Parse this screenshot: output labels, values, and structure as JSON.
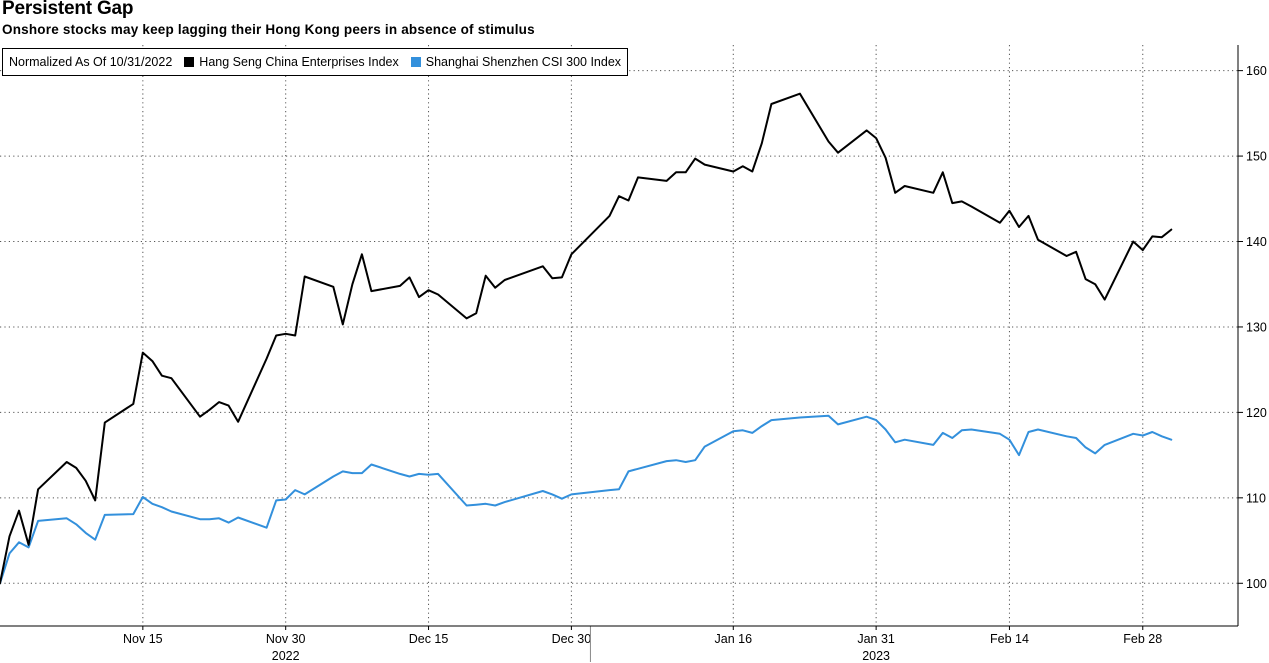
{
  "header": {
    "title": "Persistent Gap",
    "subtitle": "Onshore stocks may keep lagging their Hong Kong peers in absence of stimulus"
  },
  "legend": {
    "note": "Normalized As Of 10/31/2022"
  },
  "chart_data": {
    "type": "line",
    "ylim": [
      95,
      163
    ],
    "y_ticks": [
      100,
      110,
      120,
      130,
      140,
      150,
      160
    ],
    "x_range": [
      "2022-10-31",
      "2023-03-10"
    ],
    "x_ticks": [
      {
        "date": "2022-11-15",
        "label": "Nov 15"
      },
      {
        "date": "2022-11-30",
        "label": "Nov 30"
      },
      {
        "date": "2022-12-15",
        "label": "Dec 15"
      },
      {
        "date": "2022-12-30",
        "label": "Dec 30"
      },
      {
        "date": "2023-01-16",
        "label": "Jan 16"
      },
      {
        "date": "2023-01-31",
        "label": "Jan 31"
      },
      {
        "date": "2023-02-14",
        "label": "Feb 14"
      },
      {
        "date": "2023-02-28",
        "label": "Feb 28"
      }
    ],
    "year_labels": [
      {
        "date": "2022-11-30",
        "label": "2022"
      },
      {
        "date": "2023-01-31",
        "label": "2023"
      }
    ],
    "year_divider": "2023-01-01",
    "grid": "dotted",
    "legend_position": "top-left",
    "series": [
      {
        "name": "Hang Seng China Enterprises Index",
        "color": "#000000",
        "points": [
          [
            "2022-10-31",
            100.0
          ],
          [
            "2022-11-01",
            105.5
          ],
          [
            "2022-11-02",
            108.5
          ],
          [
            "2022-11-03",
            104.5
          ],
          [
            "2022-11-04",
            111.0
          ],
          [
            "2022-11-07",
            114.2
          ],
          [
            "2022-11-08",
            113.5
          ],
          [
            "2022-11-09",
            112.0
          ],
          [
            "2022-11-10",
            109.7
          ],
          [
            "2022-11-11",
            118.8
          ],
          [
            "2022-11-14",
            121.0
          ],
          [
            "2022-11-15",
            127.0
          ],
          [
            "2022-11-16",
            126.0
          ],
          [
            "2022-11-17",
            124.3
          ],
          [
            "2022-11-18",
            124.0
          ],
          [
            "2022-11-21",
            119.5
          ],
          [
            "2022-11-22",
            120.3
          ],
          [
            "2022-11-23",
            121.2
          ],
          [
            "2022-11-24",
            120.8
          ],
          [
            "2022-11-25",
            118.9
          ],
          [
            "2022-11-28",
            126.3
          ],
          [
            "2022-11-29",
            129.0
          ],
          [
            "2022-11-30",
            129.2
          ],
          [
            "2022-12-01",
            129.0
          ],
          [
            "2022-12-02",
            135.9
          ],
          [
            "2022-12-05",
            134.7
          ],
          [
            "2022-12-06",
            130.3
          ],
          [
            "2022-12-07",
            135.0
          ],
          [
            "2022-12-08",
            138.5
          ],
          [
            "2022-12-09",
            134.2
          ],
          [
            "2022-12-12",
            134.8
          ],
          [
            "2022-12-13",
            135.8
          ],
          [
            "2022-12-14",
            133.5
          ],
          [
            "2022-12-15",
            134.3
          ],
          [
            "2022-12-16",
            133.8
          ],
          [
            "2022-12-19",
            131.0
          ],
          [
            "2022-12-20",
            131.6
          ],
          [
            "2022-12-21",
            136.0
          ],
          [
            "2022-12-22",
            134.6
          ],
          [
            "2022-12-23",
            135.5
          ],
          [
            "2022-12-27",
            137.1
          ],
          [
            "2022-12-28",
            135.7
          ],
          [
            "2022-12-29",
            135.8
          ],
          [
            "2022-12-30",
            138.5
          ],
          [
            "2023-01-03",
            143.0
          ],
          [
            "2023-01-04",
            145.3
          ],
          [
            "2023-01-05",
            144.8
          ],
          [
            "2023-01-06",
            147.5
          ],
          [
            "2023-01-09",
            147.1
          ],
          [
            "2023-01-10",
            148.1
          ],
          [
            "2023-01-11",
            148.1
          ],
          [
            "2023-01-12",
            149.7
          ],
          [
            "2023-01-13",
            149.0
          ],
          [
            "2023-01-16",
            148.2
          ],
          [
            "2023-01-17",
            148.8
          ],
          [
            "2023-01-18",
            148.2
          ],
          [
            "2023-01-19",
            151.5
          ],
          [
            "2023-01-20",
            156.1
          ],
          [
            "2023-01-23",
            157.3
          ],
          [
            "2023-01-26",
            151.7
          ],
          [
            "2023-01-27",
            150.4
          ],
          [
            "2023-01-30",
            153.0
          ],
          [
            "2023-01-31",
            152.1
          ],
          [
            "2023-02-01",
            149.8
          ],
          [
            "2023-02-02",
            145.7
          ],
          [
            "2023-02-03",
            146.5
          ],
          [
            "2023-02-06",
            145.7
          ],
          [
            "2023-02-07",
            148.1
          ],
          [
            "2023-02-08",
            144.5
          ],
          [
            "2023-02-09",
            144.7
          ],
          [
            "2023-02-10",
            144.1
          ],
          [
            "2023-02-13",
            142.2
          ],
          [
            "2023-02-14",
            143.6
          ],
          [
            "2023-02-15",
            141.7
          ],
          [
            "2023-02-16",
            143.0
          ],
          [
            "2023-02-17",
            140.2
          ],
          [
            "2023-02-20",
            138.3
          ],
          [
            "2023-02-21",
            138.8
          ],
          [
            "2023-02-22",
            135.6
          ],
          [
            "2023-02-23",
            135.0
          ],
          [
            "2023-02-24",
            133.2
          ],
          [
            "2023-02-27",
            140.0
          ],
          [
            "2023-02-28",
            139.0
          ],
          [
            "2023-03-01",
            140.6
          ],
          [
            "2023-03-02",
            140.5
          ],
          [
            "2023-03-03",
            141.4
          ]
        ]
      },
      {
        "name": "Shanghai Shenzhen CSI 300 Index",
        "color": "#3390DC",
        "points": [
          [
            "2022-10-31",
            100.0
          ],
          [
            "2022-11-01",
            103.5
          ],
          [
            "2022-11-02",
            104.8
          ],
          [
            "2022-11-03",
            104.2
          ],
          [
            "2022-11-04",
            107.3
          ],
          [
            "2022-11-07",
            107.6
          ],
          [
            "2022-11-08",
            106.9
          ],
          [
            "2022-11-09",
            105.9
          ],
          [
            "2022-11-10",
            105.1
          ],
          [
            "2022-11-11",
            108.0
          ],
          [
            "2022-11-14",
            108.1
          ],
          [
            "2022-11-15",
            110.1
          ],
          [
            "2022-11-16",
            109.3
          ],
          [
            "2022-11-17",
            108.9
          ],
          [
            "2022-11-18",
            108.4
          ],
          [
            "2022-11-21",
            107.5
          ],
          [
            "2022-11-22",
            107.5
          ],
          [
            "2022-11-23",
            107.6
          ],
          [
            "2022-11-24",
            107.1
          ],
          [
            "2022-11-25",
            107.7
          ],
          [
            "2022-11-28",
            106.5
          ],
          [
            "2022-11-29",
            109.7
          ],
          [
            "2022-11-30",
            109.8
          ],
          [
            "2022-12-01",
            110.9
          ],
          [
            "2022-12-02",
            110.4
          ],
          [
            "2022-12-05",
            112.5
          ],
          [
            "2022-12-06",
            113.1
          ],
          [
            "2022-12-07",
            112.9
          ],
          [
            "2022-12-08",
            112.9
          ],
          [
            "2022-12-09",
            113.9
          ],
          [
            "2022-12-12",
            112.8
          ],
          [
            "2022-12-13",
            112.5
          ],
          [
            "2022-12-14",
            112.8
          ],
          [
            "2022-12-15",
            112.7
          ],
          [
            "2022-12-16",
            112.8
          ],
          [
            "2022-12-19",
            109.1
          ],
          [
            "2022-12-20",
            109.2
          ],
          [
            "2022-12-21",
            109.3
          ],
          [
            "2022-12-22",
            109.1
          ],
          [
            "2022-12-23",
            109.5
          ],
          [
            "2022-12-27",
            110.8
          ],
          [
            "2022-12-28",
            110.4
          ],
          [
            "2022-12-29",
            109.9
          ],
          [
            "2022-12-30",
            110.4
          ],
          [
            "2023-01-03",
            110.9
          ],
          [
            "2023-01-04",
            111.0
          ],
          [
            "2023-01-05",
            113.1
          ],
          [
            "2023-01-06",
            113.4
          ],
          [
            "2023-01-09",
            114.3
          ],
          [
            "2023-01-10",
            114.4
          ],
          [
            "2023-01-11",
            114.2
          ],
          [
            "2023-01-12",
            114.4
          ],
          [
            "2023-01-13",
            116.0
          ],
          [
            "2023-01-16",
            117.8
          ],
          [
            "2023-01-17",
            117.9
          ],
          [
            "2023-01-18",
            117.6
          ],
          [
            "2023-01-19",
            118.4
          ],
          [
            "2023-01-20",
            119.1
          ],
          [
            "2023-01-23",
            119.4
          ],
          [
            "2023-01-26",
            119.6
          ],
          [
            "2023-01-27",
            118.6
          ],
          [
            "2023-01-30",
            119.5
          ],
          [
            "2023-01-31",
            119.1
          ],
          [
            "2023-02-01",
            118.0
          ],
          [
            "2023-02-02",
            116.5
          ],
          [
            "2023-02-03",
            116.8
          ],
          [
            "2023-02-06",
            116.2
          ],
          [
            "2023-02-07",
            117.6
          ],
          [
            "2023-02-08",
            117.0
          ],
          [
            "2023-02-09",
            117.9
          ],
          [
            "2023-02-10",
            118.0
          ],
          [
            "2023-02-13",
            117.5
          ],
          [
            "2023-02-14",
            116.8
          ],
          [
            "2023-02-15",
            115.0
          ],
          [
            "2023-02-16",
            117.7
          ],
          [
            "2023-02-17",
            118.0
          ],
          [
            "2023-02-20",
            117.2
          ],
          [
            "2023-02-21",
            117.0
          ],
          [
            "2023-02-22",
            115.9
          ],
          [
            "2023-02-23",
            115.2
          ],
          [
            "2023-02-24",
            116.2
          ],
          [
            "2023-02-27",
            117.5
          ],
          [
            "2023-02-28",
            117.3
          ],
          [
            "2023-03-01",
            117.7
          ],
          [
            "2023-03-02",
            117.2
          ],
          [
            "2023-03-03",
            116.8
          ]
        ]
      }
    ]
  }
}
